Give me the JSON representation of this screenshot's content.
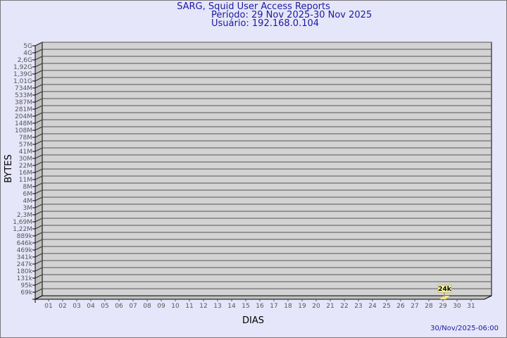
{
  "header": {
    "title": "SARG, Squid User Access Reports",
    "period": "Período: 29 Nov 2025-30 Nov 2025",
    "user": "Usuário: 192.168.0.104"
  },
  "footer": {
    "timestamp": "30/Nov/2025-06:00"
  },
  "chart_data": {
    "type": "bar",
    "title": "SARG, Squid User Access Reports",
    "xlabel": "DIAS",
    "ylabel": "BYTES",
    "y_scale": "log",
    "y_ticks": [
      "69k",
      "95k",
      "131k",
      "180k",
      "247k",
      "341k",
      "469k",
      "646k",
      "889k",
      "1,22M",
      "1,69M",
      "2,3M",
      "3M",
      "4M",
      "6M",
      "8M",
      "11M",
      "16M",
      "22M",
      "30M",
      "41M",
      "57M",
      "78M",
      "108M",
      "148M",
      "204M",
      "281M",
      "387M",
      "533M",
      "734M",
      "1,01G",
      "1,39G",
      "1,92G",
      "2,6G",
      "4G",
      "5G"
    ],
    "categories": [
      "01",
      "02",
      "03",
      "04",
      "05",
      "06",
      "07",
      "08",
      "09",
      "10",
      "11",
      "12",
      "13",
      "14",
      "15",
      "16",
      "17",
      "18",
      "19",
      "20",
      "21",
      "22",
      "23",
      "24",
      "25",
      "26",
      "27",
      "28",
      "29",
      "30",
      "31"
    ],
    "values": [
      null,
      null,
      null,
      null,
      null,
      null,
      null,
      null,
      null,
      null,
      null,
      null,
      null,
      null,
      null,
      null,
      null,
      null,
      null,
      null,
      null,
      null,
      null,
      null,
      null,
      null,
      null,
      null,
      24000,
      null,
      null
    ],
    "data_labels": {
      "29": "24k"
    },
    "grid": true,
    "colors": {
      "wall": "#d3d3d3",
      "side": "#c0c0c0",
      "bar": "#ffe680",
      "label_bg": "#ffffb0",
      "text": "#1a1aa0"
    }
  }
}
